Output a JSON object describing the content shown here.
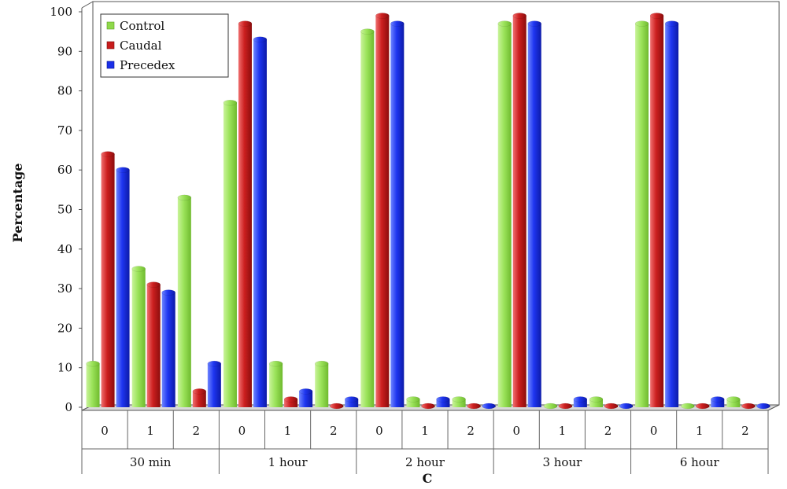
{
  "chart_data": {
    "type": "bar",
    "title": "",
    "xlabel": "C",
    "ylabel": "Percentage",
    "ylim": [
      0,
      100
    ],
    "yticks": [
      0,
      10,
      20,
      30,
      40,
      50,
      60,
      70,
      80,
      90,
      100
    ],
    "groups": [
      "30 min",
      "1 hour",
      "2 hour",
      "3 hour",
      "6 hour"
    ],
    "subcategories": [
      "0",
      "1",
      "2",
      "0",
      "1",
      "2",
      "0",
      "1",
      "2",
      "0",
      "1",
      "2",
      "0",
      "1",
      "2"
    ],
    "legend_position": "top-left",
    "series": [
      {
        "name": "Control",
        "color": "#8fd94a",
        "values": [
          11,
          35,
          53,
          77,
          11,
          11,
          95,
          2,
          2,
          97,
          0,
          2,
          97,
          0,
          2
        ]
      },
      {
        "name": "Caudal",
        "color": "#c81c1c",
        "values": [
          64,
          31,
          4,
          97,
          2,
          0,
          99,
          0,
          0,
          99,
          0,
          0,
          99,
          0,
          0
        ]
      },
      {
        "name": "Precedex",
        "color": "#1a2fe8",
        "values": [
          60,
          29,
          11,
          93,
          4,
          2,
          97,
          2,
          0,
          97,
          2,
          0,
          97,
          2,
          0
        ]
      }
    ]
  }
}
